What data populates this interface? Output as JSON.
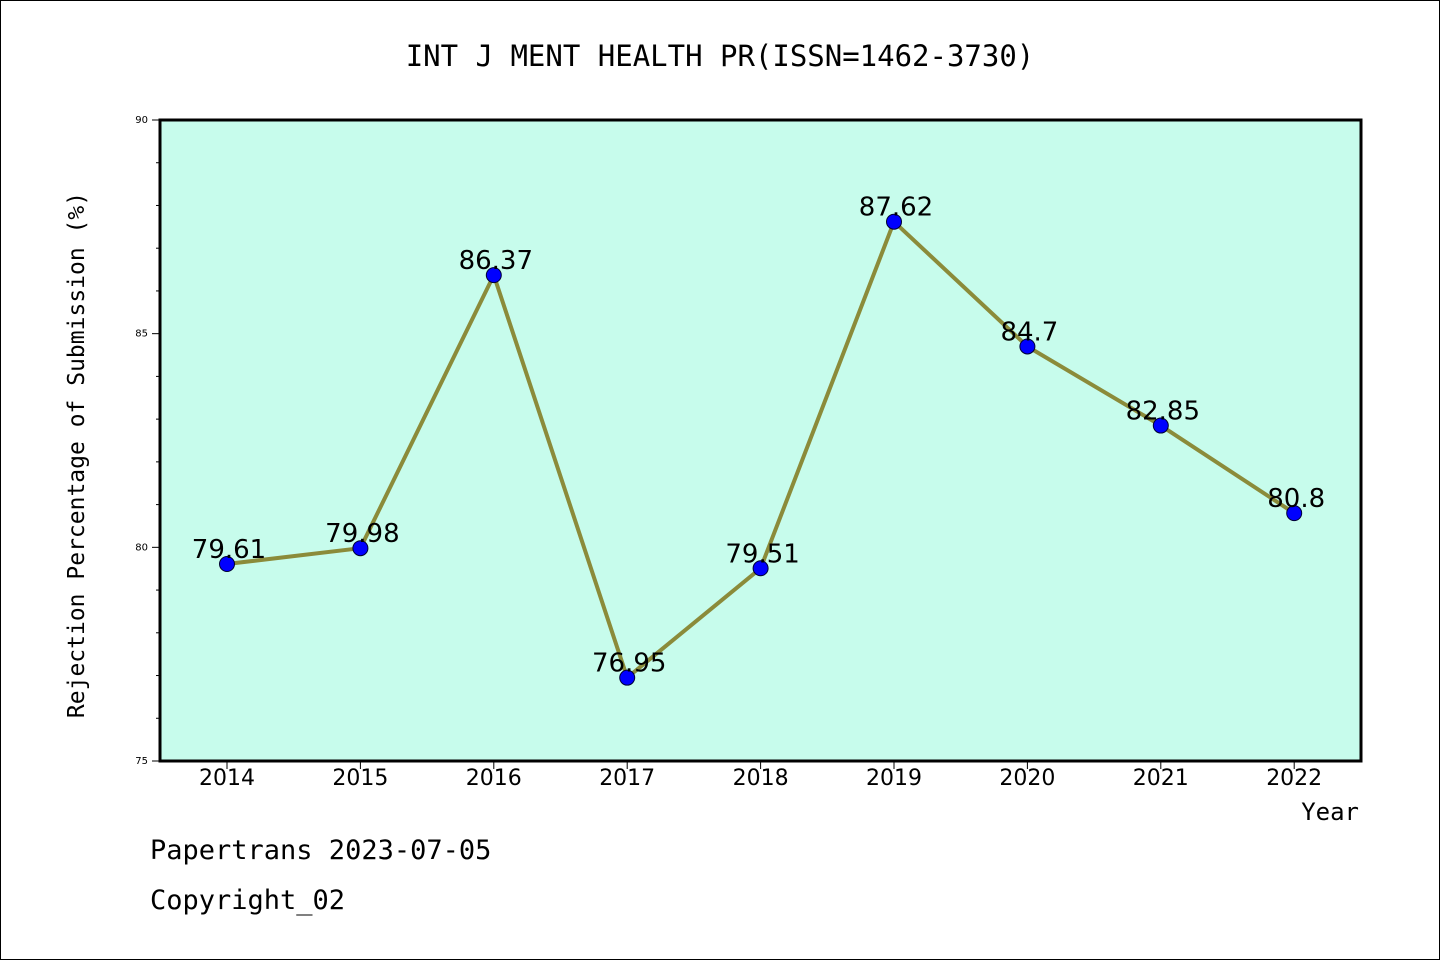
{
  "chart_data": {
    "type": "line",
    "title": "INT J MENT HEALTH PR(ISSN=1462-3730)",
    "xlabel": "Year",
    "ylabel": "Rejection Percentage of Submission (%)",
    "x": [
      "2014",
      "2015",
      "2016",
      "2017",
      "2018",
      "2019",
      "2020",
      "2021",
      "2022"
    ],
    "series": [
      {
        "values": [
          79.61,
          79.98,
          86.37,
          76.95,
          79.51,
          87.62,
          84.7,
          82.85,
          80.8
        ],
        "labels": [
          "79.61",
          "79.98",
          "86.37",
          "76.95",
          "79.51",
          "87.62",
          "84.7",
          "82.85",
          "80.8"
        ]
      }
    ],
    "ylim": [
      75,
      90
    ],
    "yticks": [
      "75",
      "80",
      "85",
      "90"
    ],
    "grid": false,
    "colors": {
      "plot_background": "#c7fcec",
      "line": "#8b8b3a",
      "marker": "#0000ff"
    }
  },
  "footer": {
    "source_line": "Papertrans 2023-07-05",
    "copyright_line": "Copyright_02"
  }
}
